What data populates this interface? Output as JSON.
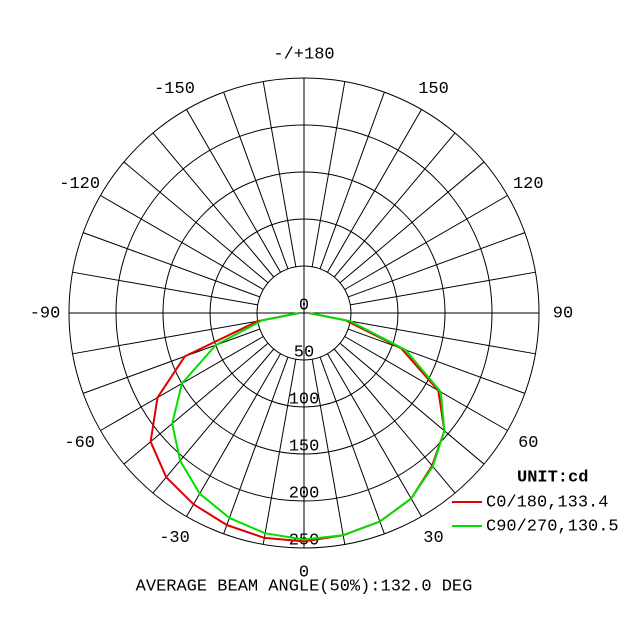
{
  "chart_data": {
    "type": "polar",
    "title": "AVERAGE BEAM ANGLE(50%):132.0 DEG",
    "legend_title": "UNIT:cd",
    "legend": "lower right",
    "x": [
      -90,
      -80,
      -70,
      -60,
      -50,
      -40,
      -30,
      -20,
      -10,
      0,
      10,
      20,
      30,
      40,
      50,
      60,
      70,
      80,
      90
    ],
    "series": [
      {
        "name": "C0/180,133.4",
        "color": "#e00000",
        "values": [
          5,
          50,
          135,
          180,
          213,
          228,
          235,
          240,
          243,
          243,
          240,
          236,
          228,
          212,
          195,
          165,
          110,
          45,
          5
        ]
      },
      {
        "name": "C90/270,130.5",
        "color": "#00e000",
        "values": [
          5,
          45,
          100,
          150,
          183,
          205,
          222,
          232,
          238,
          241,
          240,
          236,
          228,
          213,
          195,
          168,
          115,
          50,
          5
        ]
      }
    ],
    "xticks": [
      -150,
      -120,
      -90,
      -60,
      -30,
      0,
      30,
      60,
      90,
      120,
      150,
      {
        "value": 180,
        "label": "-/+180"
      }
    ],
    "ylim": [
      0,
      250
    ],
    "yticks": [
      0,
      50,
      100,
      150,
      200,
      250
    ],
    "grid": true
  }
}
